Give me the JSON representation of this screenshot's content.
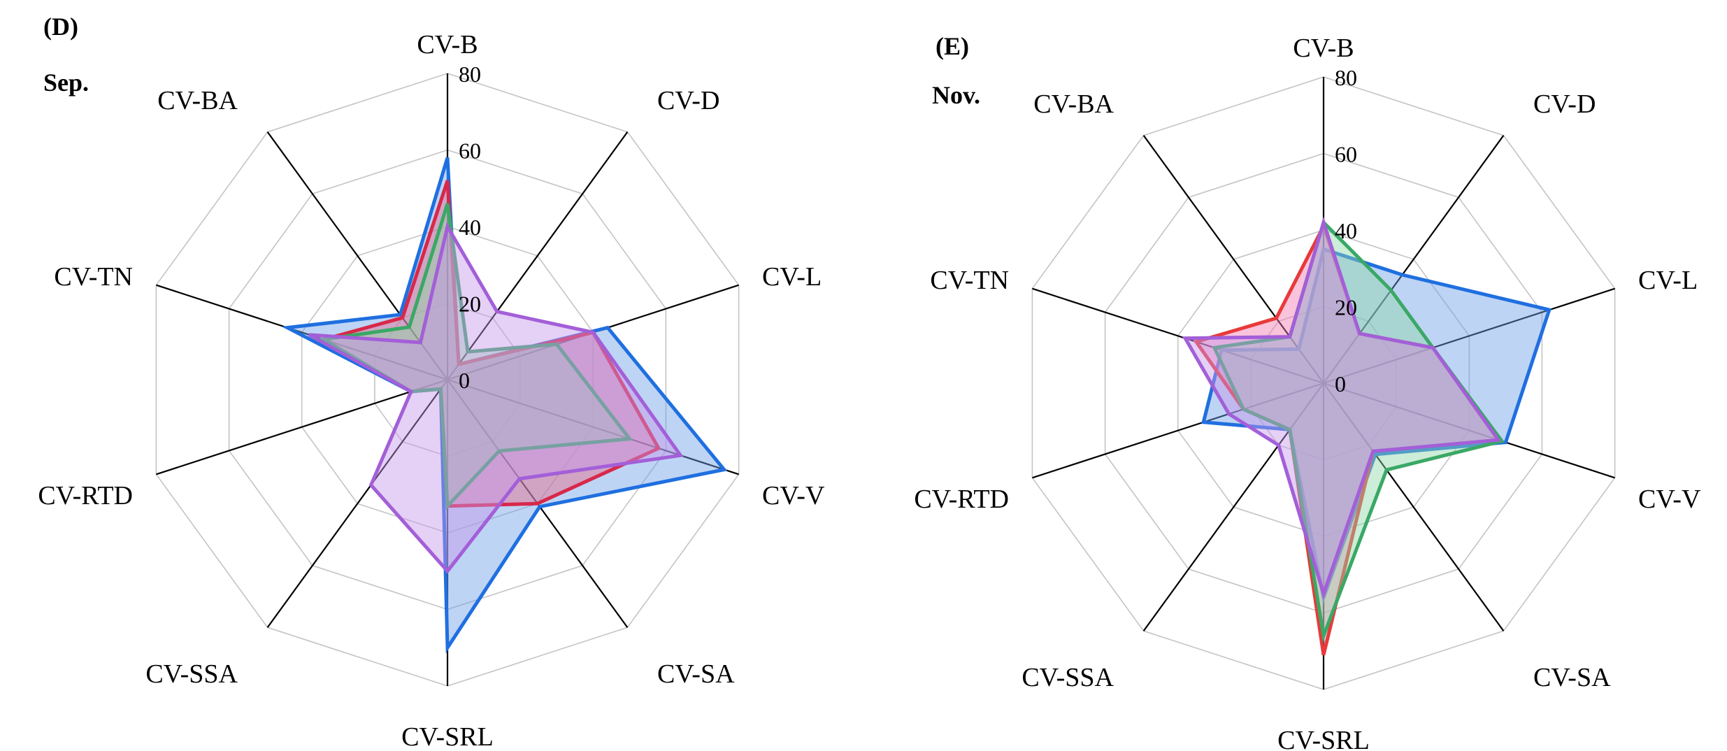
{
  "chart_data": [
    {
      "type": "radar",
      "panel": "(D)",
      "subtitle": "Sep.",
      "axes": [
        "CV-B",
        "CV-D",
        "CV-L",
        "CV-V",
        "CV-SA",
        "CV-SRL",
        "CV-SSA",
        "CV-RTD",
        "CV-TN",
        "CV-BA"
      ],
      "ticks": [
        0,
        20,
        40,
        60,
        80
      ],
      "rlim": [
        0,
        80
      ],
      "grid": true,
      "series": [
        {
          "name": "series-blue",
          "color": "#1f6fe0",
          "fill": "#6f9fe8",
          "values": [
            58,
            5,
            44,
            76,
            41,
            70,
            3,
            10,
            44,
            21
          ]
        },
        {
          "name": "series-red",
          "color": "#d8284a",
          "fill": "#e86a8a",
          "values": [
            52,
            5,
            40,
            58,
            40,
            33,
            3,
            10,
            34,
            20
          ]
        },
        {
          "name": "series-green",
          "color": "#3aa866",
          "fill": "#8fd6a6",
          "values": [
            46,
            9,
            30,
            50,
            23,
            33,
            3,
            10,
            34,
            17
          ]
        },
        {
          "name": "series-purple",
          "color": "#a35fd8",
          "fill": "#c596ec",
          "values": [
            40,
            22,
            40,
            64,
            32,
            50,
            34,
            10,
            38,
            12
          ]
        }
      ]
    },
    {
      "type": "radar",
      "panel": "(E)",
      "subtitle": "Nov.",
      "axes": [
        "CV-B",
        "CV-D",
        "CV-L",
        "CV-V",
        "CV-SA",
        "CV-SRL",
        "CV-SSA",
        "CV-RTD",
        "CV-TN",
        "CV-BA"
      ],
      "ticks": [
        0,
        20,
        40,
        60,
        80
      ],
      "rlim": [
        0,
        80
      ],
      "grid": true,
      "series": [
        {
          "name": "series-blue",
          "color": "#1f6fe0",
          "fill": "#6f9fe8",
          "values": [
            35,
            35,
            62,
            50,
            23,
            56,
            15,
            33,
            28,
            11
          ]
        },
        {
          "name": "series-red",
          "color": "#e83a3a",
          "fill": "#f27ab0",
          "values": [
            41,
            16,
            30,
            48,
            22,
            71,
            15,
            22,
            35,
            21
          ]
        },
        {
          "name": "series-green",
          "color": "#3aa866",
          "fill": "#8fd6a6",
          "values": [
            42,
            30,
            30,
            49,
            28,
            66,
            15,
            22,
            30,
            15
          ]
        },
        {
          "name": "series-purple",
          "color": "#a35fd8",
          "fill": "#c596ec",
          "values": [
            42,
            16,
            30,
            48,
            22,
            55,
            20,
            26,
            38,
            15
          ]
        }
      ]
    }
  ]
}
